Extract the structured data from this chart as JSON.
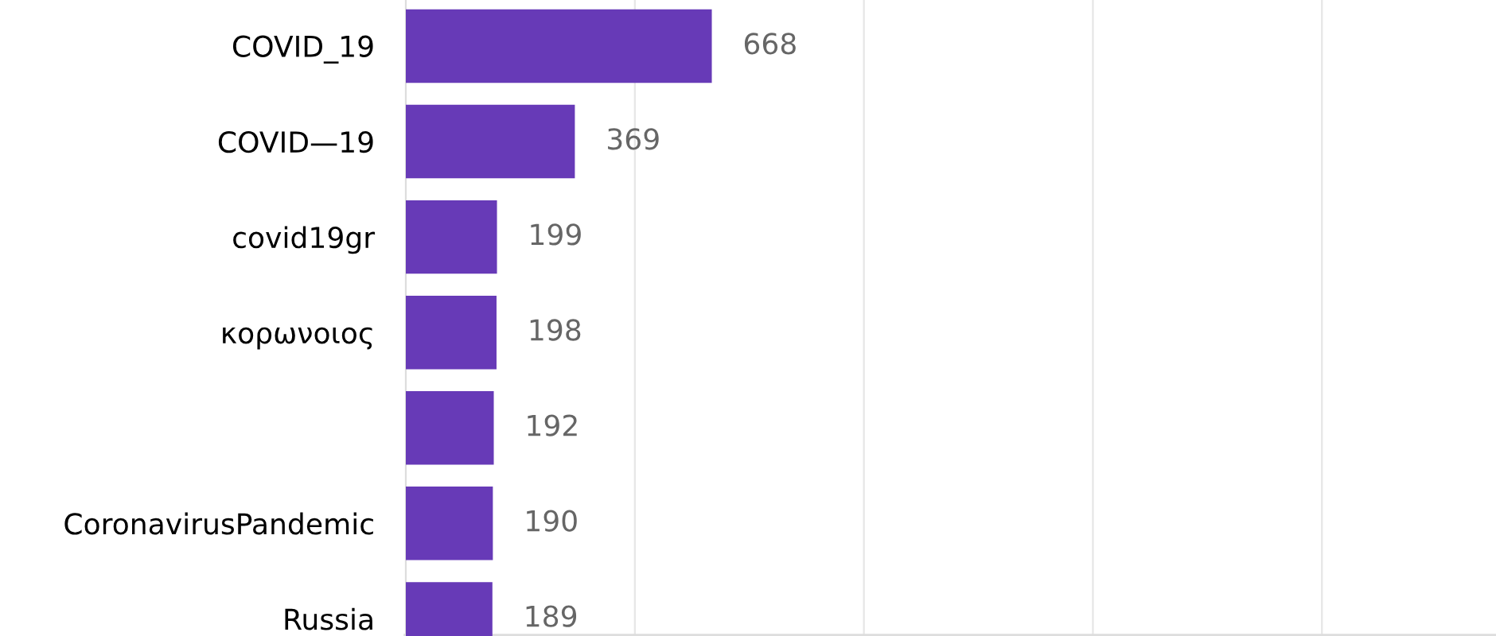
{
  "chart_data": {
    "type": "bar",
    "orientation": "horizontal",
    "categories": [
      "COVID_19",
      "COVID—19",
      "covid19gr",
      "κορωνοιος",
      null,
      "CoronavirusPandemic",
      "Russia"
    ],
    "values": [
      668,
      369,
      199,
      198,
      192,
      190,
      189
    ],
    "color": "#673ab7",
    "data_labels": true,
    "xlim": [
      0,
      2380
    ],
    "xticks": [
      {
        "value": 500,
        "label": null
      },
      {
        "value": 1000,
        "label": null
      },
      {
        "value": 1500,
        "label": null
      },
      {
        "value": 2000,
        "label": null
      }
    ],
    "grid": "x",
    "tick_labels": "y"
  }
}
